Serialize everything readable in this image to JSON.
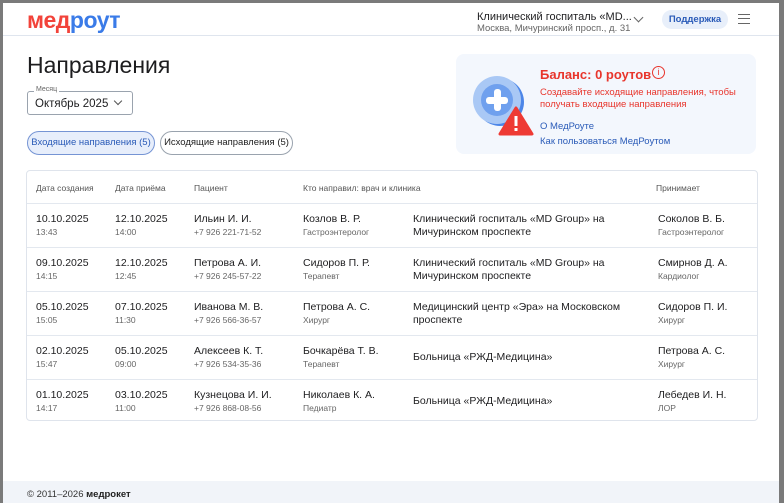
{
  "header": {
    "logo_part1": "мед",
    "logo_part2": "роут",
    "clinic_name": "Клинический госпиталь «MD...",
    "clinic_address": "Москва, Мичуринский просп., д. 31",
    "support_label": "Поддержка"
  },
  "page": {
    "title": "Направления",
    "month_label": "Месяц",
    "month_value": "Октябрь 2025"
  },
  "tabs": [
    {
      "label": "Входящие направления (5)",
      "active": true
    },
    {
      "label": "Исходящие направления (5)",
      "active": false
    }
  ],
  "balance": {
    "title": "Баланс: 0 роутов",
    "message": "Создавайте исходящие направления, чтобы получать входящие направления",
    "link_about": "О МедРоуте",
    "link_howto": "Как пользоваться МедРоутом",
    "color": "#e8352c"
  },
  "table": {
    "headers": [
      "Дата создания",
      "Дата приёма",
      "Пациент",
      "Кто направил: врач и клиника",
      "Принимает"
    ],
    "rows": [
      {
        "created": "10.10.2025",
        "created_time": "13:43",
        "appt": "12.10.2025",
        "appt_time": "14:00",
        "patient": "Ильин И. И.",
        "phone": "+7 926 221-71-52",
        "doctor": "Козлов В. Р.",
        "doctor_spec": "Гастроэнтеролог",
        "clinic": "Клинический госпиталь «MD Group» на Мичуринском проспекте",
        "receiver": "Соколов В. Б.",
        "receiver_spec": "Гастроэнтеролог"
      },
      {
        "created": "09.10.2025",
        "created_time": "14:15",
        "appt": "12.10.2025",
        "appt_time": "12:45",
        "patient": "Петрова А. И.",
        "phone": "+7 926 245-57-22",
        "doctor": "Сидоров П. Р.",
        "doctor_spec": "Терапевт",
        "clinic": "Клинический госпиталь «MD Group» на Мичуринском проспекте",
        "receiver": "Смирнов Д. А.",
        "receiver_spec": "Кардиолог"
      },
      {
        "created": "05.10.2025",
        "created_time": "15:05",
        "appt": "07.10.2025",
        "appt_time": "11:30",
        "patient": "Иванова М. В.",
        "phone": "+7 926 566-36-57",
        "doctor": "Петрова А. С.",
        "doctor_spec": "Хирург",
        "clinic": "Медицинский центр «Эра» на Московском проспекте",
        "receiver": "Сидоров П. И.",
        "receiver_spec": "Хирург"
      },
      {
        "created": "02.10.2025",
        "created_time": "15:47",
        "appt": "05.10.2025",
        "appt_time": "09:00",
        "patient": "Алексеев К. Т.",
        "phone": "+7 926 534-35-36",
        "doctor": "Бочкарёва Т. В.",
        "doctor_spec": "Терапевт",
        "clinic": "Больница «РЖД-Медицина»",
        "receiver": "Петрова А. С.",
        "receiver_spec": "Хирург"
      },
      {
        "created": "01.10.2025",
        "created_time": "14:17",
        "appt": "03.10.2025",
        "appt_time": "11:00",
        "patient": "Кузнецова И. И.",
        "phone": "+7 926 868-08-56",
        "doctor": "Николаев К. А.",
        "doctor_spec": "Педиатр",
        "clinic": "Больница «РЖД-Медицина»",
        "receiver": "Лебедев И. Н.",
        "receiver_spec": "ЛОР"
      }
    ]
  },
  "footer": {
    "copyright": "© 2011–2026",
    "brand": "медрокет"
  }
}
